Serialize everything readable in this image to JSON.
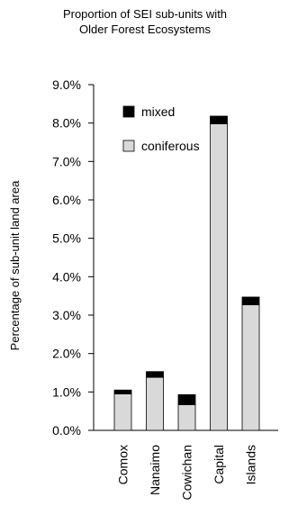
{
  "chart_data": {
    "type": "bar",
    "stacked": true,
    "title": "Proportion of SEI sub-units with Older Forest Ecosystems",
    "title_lines": [
      "Proportion of SEI sub-units with",
      "Older Forest Ecosystems"
    ],
    "xlabel": "",
    "ylabel": "Percentage of sub-unit land area",
    "categories": [
      "Comox",
      "Nanaimo",
      "Cowichan",
      "Capital",
      "Islands"
    ],
    "series": [
      {
        "name": "coniferous",
        "color": "#d9d9d9",
        "values": [
          0.95,
          1.38,
          0.67,
          7.98,
          3.27
        ]
      },
      {
        "name": "mixed",
        "color": "#000000",
        "values": [
          0.1,
          0.15,
          0.26,
          0.2,
          0.2
        ]
      }
    ],
    "ylim": [
      0,
      9
    ],
    "yticks": [
      0,
      1,
      2,
      3,
      4,
      5,
      6,
      7,
      8,
      9
    ],
    "ytick_labels": [
      "0.0%",
      "1.0%",
      "2.0%",
      "3.0%",
      "4.0%",
      "5.0%",
      "6.0%",
      "7.0%",
      "8.0%",
      "9.0%"
    ],
    "grid": false,
    "legend": {
      "placement": "top-left inside",
      "order": [
        "mixed",
        "coniferous"
      ]
    }
  }
}
